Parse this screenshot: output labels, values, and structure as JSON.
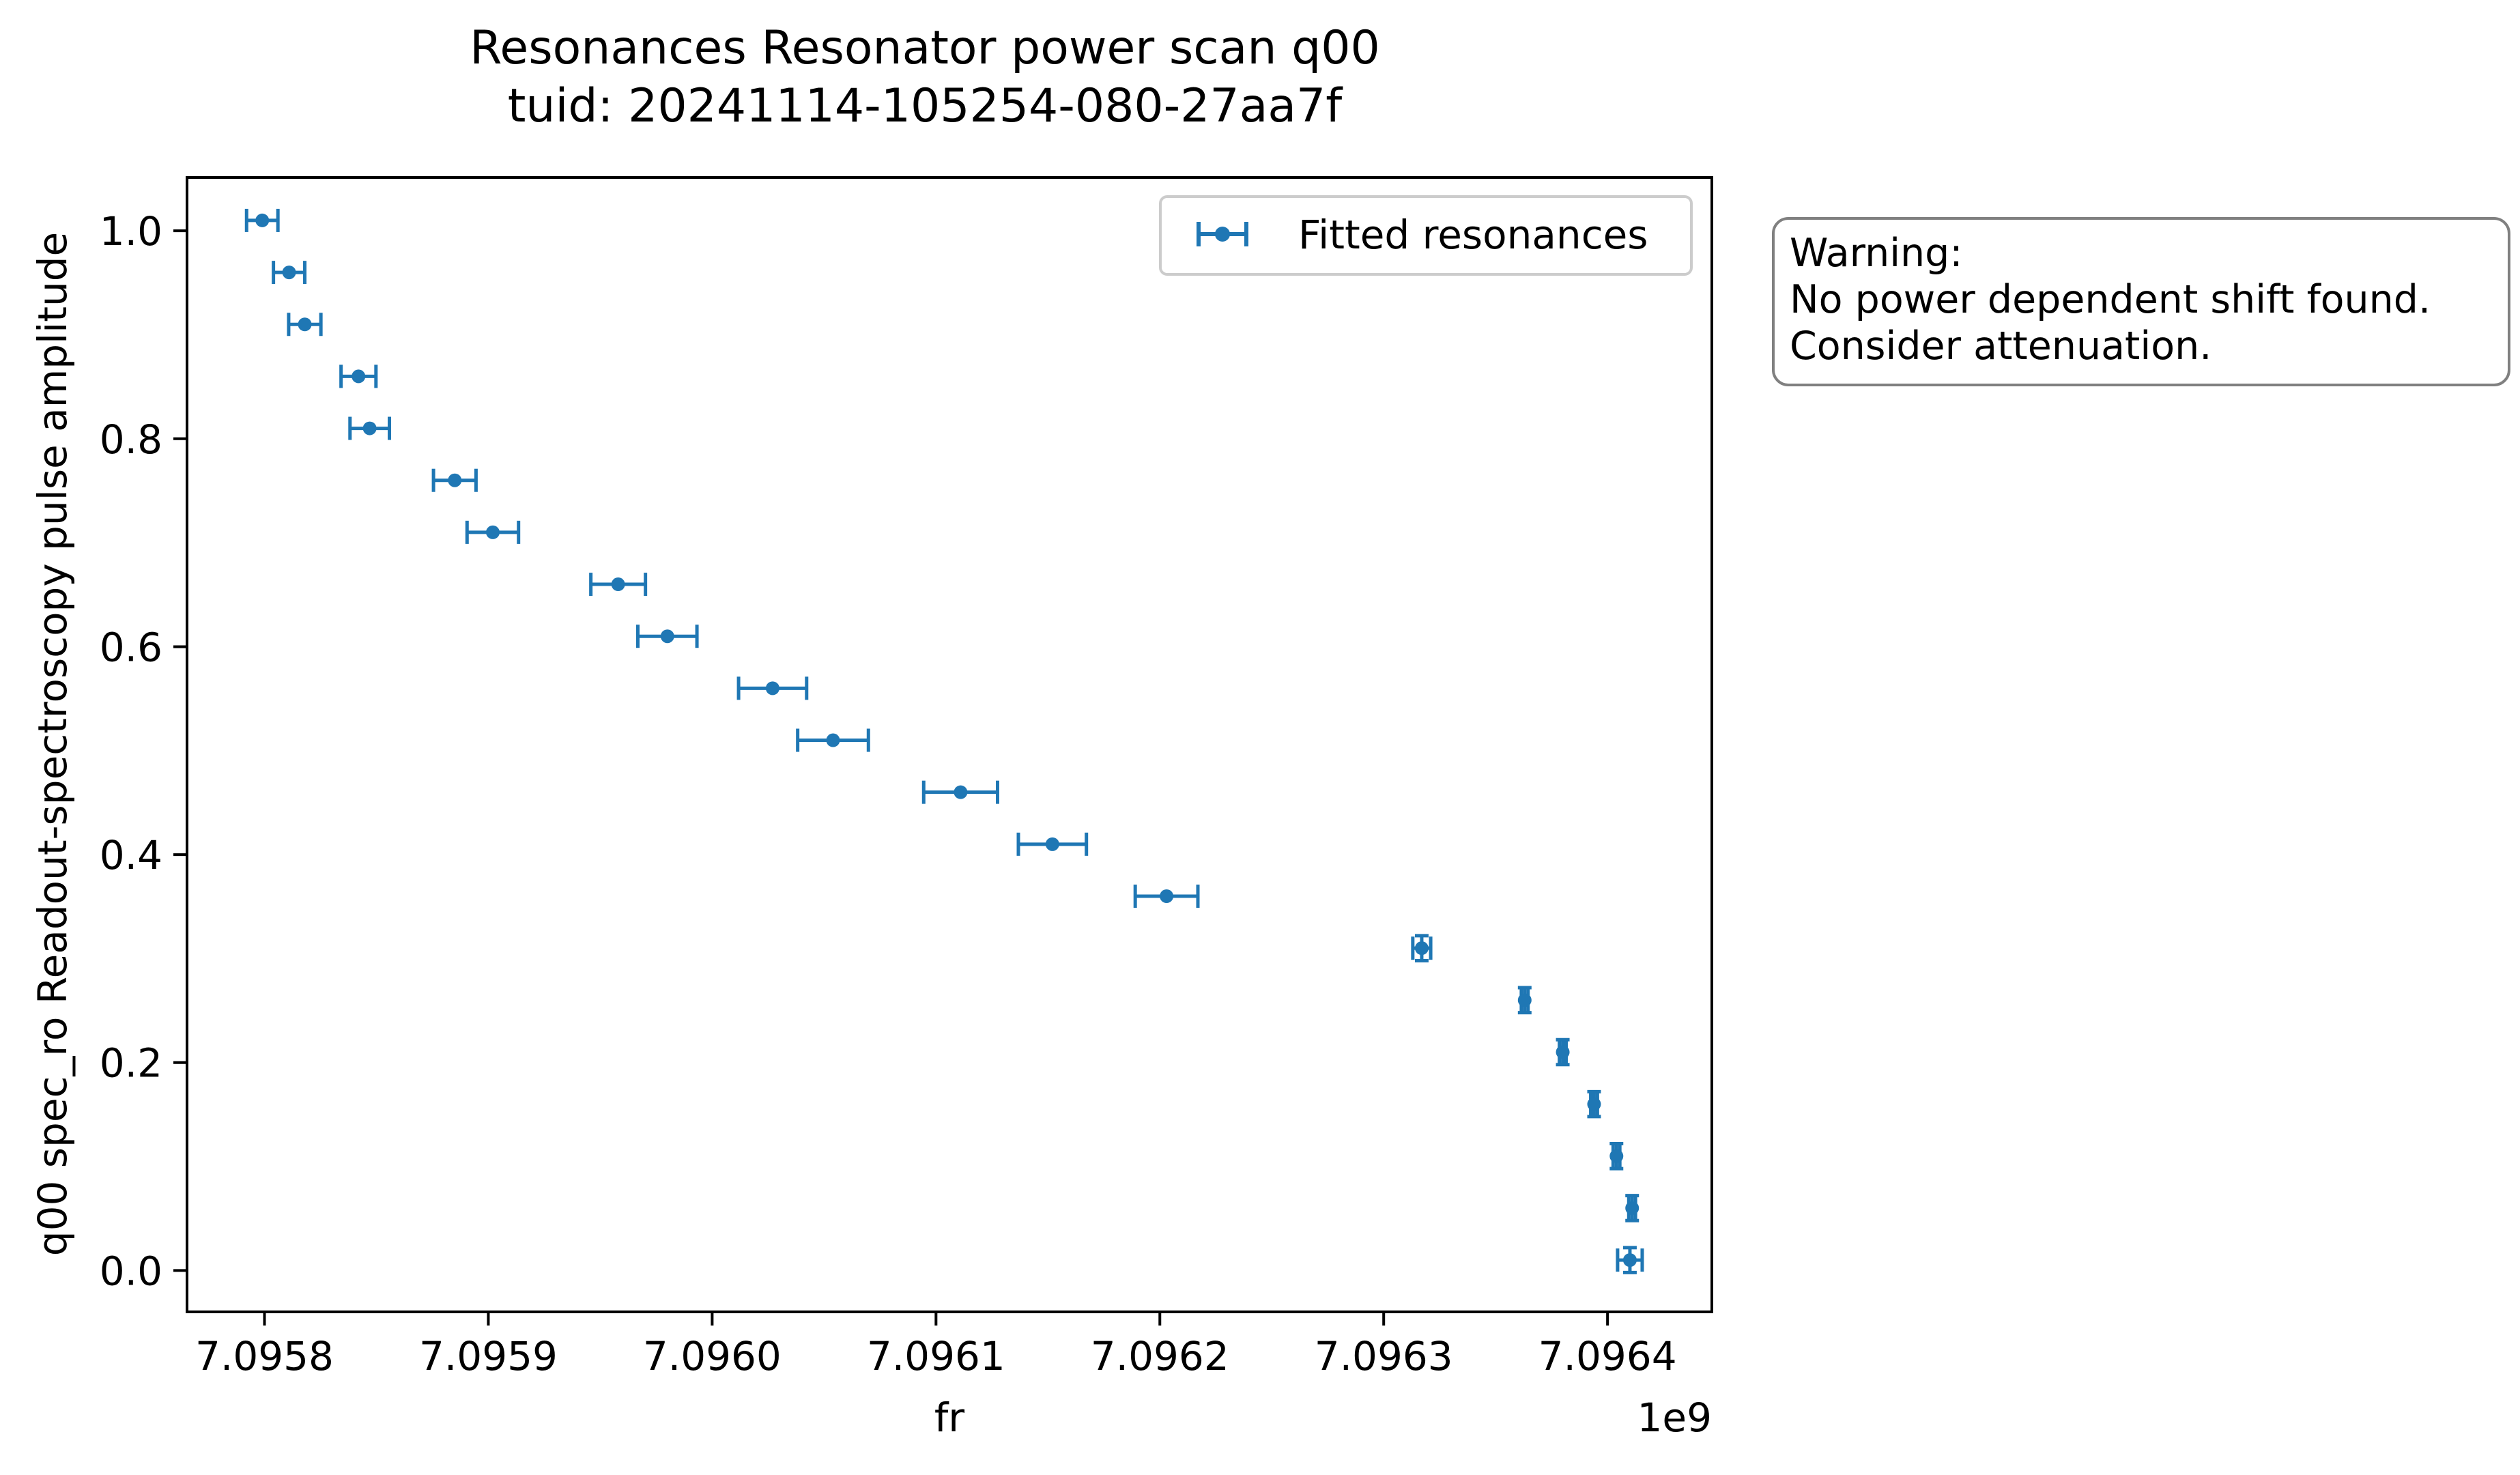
{
  "chart_data": {
    "type": "scatter",
    "title": "Resonances Resonator power scan q00",
    "subtitle": "tuid: 20241114-105254-080-27aa7f",
    "xlabel": "fr",
    "ylabel": "q00 spec_ro Readout-spectroscopy pulse amplitude",
    "x_offset_text": "1e9",
    "x_scale": 1000000000,
    "xlim": [
      7.095766,
      7.096446
    ],
    "ylim": [
      -0.0385,
      1.05
    ],
    "x_ticks": [
      7.0958,
      7.0959,
      7.096,
      7.0961,
      7.0962,
      7.0963,
      7.0964
    ],
    "x_tick_labels": [
      "7.0958",
      "7.0959",
      "7.0960",
      "7.0961",
      "7.0962",
      "7.0963",
      "7.0964"
    ],
    "y_ticks": [
      0.0,
      0.2,
      0.4,
      0.6,
      0.8,
      1.0
    ],
    "y_tick_labels": [
      "0.0",
      "0.2",
      "0.4",
      "0.6",
      "0.8",
      "1.0"
    ],
    "grid": false,
    "legend_position": "upper right",
    "series": [
      {
        "name": "Fitted resonances",
        "color": "#1f77b4",
        "points": [
          {
            "x": 7.09641,
            "y": 0.01,
            "xerr": 5.5e-06,
            "yerr": 0.012
          },
          {
            "x": 7.096411,
            "y": 0.06,
            "xerr": 1.5e-06,
            "yerr": 0.012
          },
          {
            "x": 7.096404,
            "y": 0.11,
            "xerr": 1.5e-06,
            "yerr": 0.012
          },
          {
            "x": 7.096394,
            "y": 0.16,
            "xerr": 1.5e-06,
            "yerr": 0.012
          },
          {
            "x": 7.09638,
            "y": 0.21,
            "xerr": 1.5e-06,
            "yerr": 0.012
          },
          {
            "x": 7.096363,
            "y": 0.26,
            "xerr": 1.5e-06,
            "yerr": 0.012
          },
          {
            "x": 7.096317,
            "y": 0.31,
            "xerr": 4e-06,
            "yerr": 0.012
          },
          {
            "x": 7.096203,
            "y": 0.36,
            "xerr": 1.4e-05,
            "yerr": 0
          },
          {
            "x": 7.096152,
            "y": 0.41,
            "xerr": 1.52e-05,
            "yerr": 0
          },
          {
            "x": 7.096111,
            "y": 0.46,
            "xerr": 1.65e-05,
            "yerr": 0
          },
          {
            "x": 7.096054,
            "y": 0.51,
            "xerr": 1.58e-05,
            "yerr": 0
          },
          {
            "x": 7.096027,
            "y": 0.56,
            "xerr": 1.52e-05,
            "yerr": 0
          },
          {
            "x": 7.09598,
            "y": 0.61,
            "xerr": 1.32e-05,
            "yerr": 0
          },
          {
            "x": 7.095958,
            "y": 0.66,
            "xerr": 1.22e-05,
            "yerr": 0
          },
          {
            "x": 7.095902,
            "y": 0.71,
            "xerr": 1.15e-05,
            "yerr": 0
          },
          {
            "x": 7.095885,
            "y": 0.76,
            "xerr": 9.5e-06,
            "yerr": 0
          },
          {
            "x": 7.095847,
            "y": 0.81,
            "xerr": 8.8e-06,
            "yerr": 0
          },
          {
            "x": 7.095842,
            "y": 0.86,
            "xerr": 7.8e-06,
            "yerr": 0
          },
          {
            "x": 7.095818,
            "y": 0.91,
            "xerr": 7.2e-06,
            "yerr": 0
          },
          {
            "x": 7.095811,
            "y": 0.96,
            "xerr": 7e-06,
            "yerr": 0
          },
          {
            "x": 7.095799,
            "y": 1.01,
            "xerr": 7e-06,
            "yerr": 0
          }
        ]
      }
    ],
    "annotation": {
      "lines": [
        "Warning:",
        "No power dependent shift found.",
        "Consider attenuation."
      ]
    }
  }
}
